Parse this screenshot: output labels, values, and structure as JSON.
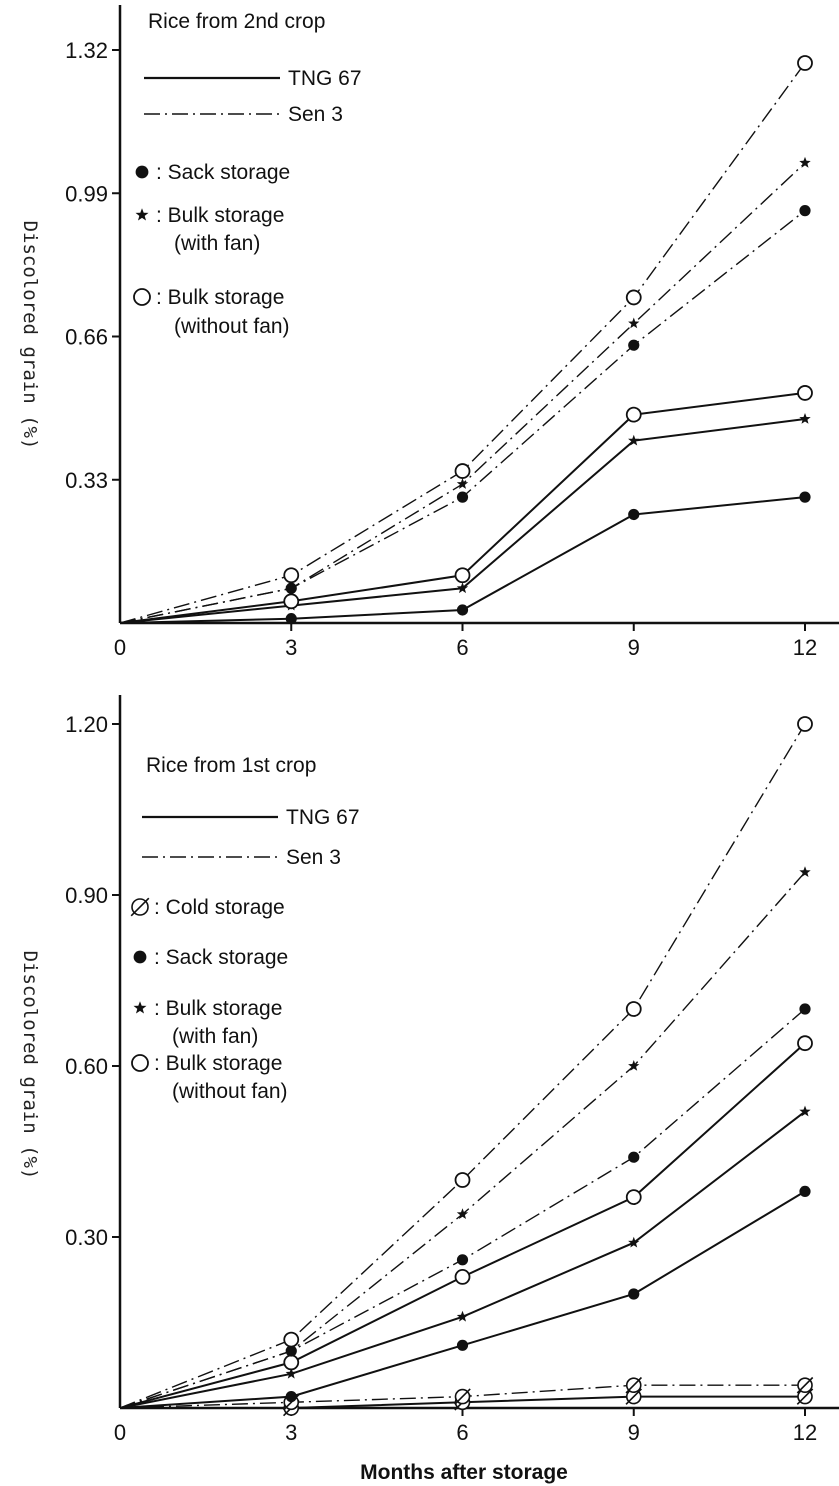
{
  "chart_data": [
    {
      "type": "line",
      "title": "Rice from 2nd crop",
      "xlabel": "",
      "ylabel": "Discolored grain (%)",
      "x": [
        0,
        3,
        6,
        9,
        12
      ],
      "x_ticks": [
        "0",
        "3",
        "6",
        "9",
        "12"
      ],
      "y_ticks": [
        "0.33",
        "0.66",
        "0.99",
        "1.32"
      ],
      "xlim": [
        0,
        12
      ],
      "ylim": [
        0,
        1.32
      ],
      "grid": false,
      "legend_lines": [
        {
          "style": "solid",
          "label": "TNG 67"
        },
        {
          "style": "dashdot",
          "label": "Sen 3"
        }
      ],
      "legend_markers": [
        {
          "marker": "filled-circle",
          "symbol": "●",
          "label": ": Sack storage"
        },
        {
          "marker": "star",
          "symbol": "★",
          "label": ": Bulk storage",
          "label2": "(with fan)"
        },
        {
          "marker": "open-circle",
          "symbol": "○",
          "label": ": Bulk storage",
          "label2": "(without fan)"
        }
      ],
      "series": [
        {
          "cultivar": "TNG 67",
          "storage": "Sack storage",
          "style": "solid",
          "marker": "filled-circle",
          "values": [
            0,
            0.01,
            0.03,
            0.25,
            0.29
          ]
        },
        {
          "cultivar": "TNG 67",
          "storage": "Bulk storage (with fan)",
          "style": "solid",
          "marker": "star",
          "values": [
            0,
            0.04,
            0.08,
            0.42,
            0.47
          ]
        },
        {
          "cultivar": "TNG 67",
          "storage": "Bulk storage (without fan)",
          "style": "solid",
          "marker": "open-circle",
          "values": [
            0,
            0.05,
            0.11,
            0.48,
            0.53
          ]
        },
        {
          "cultivar": "Sen 3",
          "storage": "Sack storage",
          "style": "dashdot",
          "marker": "filled-circle",
          "values": [
            0,
            0.08,
            0.29,
            0.64,
            0.95
          ]
        },
        {
          "cultivar": "Sen 3",
          "storage": "Bulk storage (with fan)",
          "style": "dashdot",
          "marker": "star",
          "values": [
            0,
            0.08,
            0.32,
            0.69,
            1.06
          ]
        },
        {
          "cultivar": "Sen 3",
          "storage": "Bulk storage (without fan)",
          "style": "dashdot",
          "marker": "open-circle",
          "values": [
            0,
            0.11,
            0.35,
            0.75,
            1.29
          ]
        }
      ]
    },
    {
      "type": "line",
      "title": "Rice from 1st crop",
      "xlabel": "Months after storage",
      "ylabel": "Discolored grain (%)",
      "x": [
        0,
        3,
        6,
        9,
        12
      ],
      "x_ticks": [
        "0",
        "3",
        "6",
        "9",
        "12"
      ],
      "y_ticks": [
        "0.30",
        "0.60",
        "0.90",
        "1.20"
      ],
      "xlim": [
        0,
        12
      ],
      "ylim": [
        0,
        1.2
      ],
      "grid": false,
      "legend_lines": [
        {
          "style": "solid",
          "label": "TNG 67"
        },
        {
          "style": "dashdot",
          "label": "Sen 3"
        }
      ],
      "legend_markers": [
        {
          "marker": "slashed-circle",
          "symbol": "∅",
          "label": ": Cold storage"
        },
        {
          "marker": "filled-circle",
          "symbol": "●",
          "label": ": Sack storage"
        },
        {
          "marker": "star",
          "symbol": "★",
          "label": ": Bulk storage",
          "label2": "(with fan)"
        },
        {
          "marker": "open-circle",
          "symbol": "○",
          "label": ": Bulk storage",
          "label2": "(without fan)"
        }
      ],
      "series": [
        {
          "cultivar": "TNG 67",
          "storage": "Cold storage",
          "style": "solid",
          "marker": "slashed-circle",
          "values": [
            0,
            0.0,
            0.01,
            0.02,
            0.02
          ]
        },
        {
          "cultivar": "Sen 3",
          "storage": "Cold storage",
          "style": "dashdot",
          "marker": "slashed-circle",
          "values": [
            0,
            0.01,
            0.02,
            0.04,
            0.04
          ]
        },
        {
          "cultivar": "TNG 67",
          "storage": "Sack storage",
          "style": "solid",
          "marker": "filled-circle",
          "values": [
            0,
            0.02,
            0.11,
            0.2,
            0.38
          ]
        },
        {
          "cultivar": "TNG 67",
          "storage": "Bulk storage (with fan)",
          "style": "solid",
          "marker": "star",
          "values": [
            0,
            0.06,
            0.16,
            0.29,
            0.52
          ]
        },
        {
          "cultivar": "TNG 67",
          "storage": "Bulk storage (without fan)",
          "style": "solid",
          "marker": "open-circle",
          "values": [
            0,
            0.08,
            0.23,
            0.37,
            0.64
          ]
        },
        {
          "cultivar": "Sen 3",
          "storage": "Sack storage",
          "style": "dashdot",
          "marker": "filled-circle",
          "values": [
            0,
            0.1,
            0.26,
            0.44,
            0.7
          ]
        },
        {
          "cultivar": "Sen 3",
          "storage": "Bulk storage (with fan)",
          "style": "dashdot",
          "marker": "star",
          "values": [
            0,
            0.1,
            0.34,
            0.6,
            0.94
          ]
        },
        {
          "cultivar": "Sen 3",
          "storage": "Bulk storage (without fan)",
          "style": "dashdot",
          "marker": "open-circle",
          "values": [
            0,
            0.12,
            0.4,
            0.7,
            1.2
          ]
        }
      ]
    }
  ]
}
